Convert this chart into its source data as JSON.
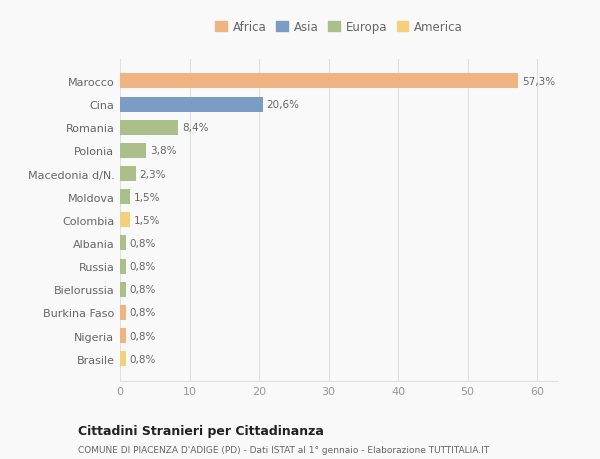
{
  "categories": [
    "Marocco",
    "Cina",
    "Romania",
    "Polonia",
    "Macedonia d/N.",
    "Moldova",
    "Colombia",
    "Albania",
    "Russia",
    "Bielorussia",
    "Burkina Faso",
    "Nigeria",
    "Brasile"
  ],
  "values": [
    57.3,
    20.6,
    8.4,
    3.8,
    2.3,
    1.5,
    1.5,
    0.8,
    0.8,
    0.8,
    0.8,
    0.8,
    0.8
  ],
  "labels": [
    "57,3%",
    "20,6%",
    "8,4%",
    "3,8%",
    "2,3%",
    "1,5%",
    "1,5%",
    "0,8%",
    "0,8%",
    "0,8%",
    "0,8%",
    "0,8%",
    "0,8%"
  ],
  "colors": [
    "#F0B482",
    "#7A9CC5",
    "#ABBF8A",
    "#ABBF8A",
    "#ABBF8A",
    "#ABBF8A",
    "#F5D07A",
    "#ABBF8A",
    "#ABBF8A",
    "#ABBF8A",
    "#F0B482",
    "#F0B482",
    "#F5D07A"
  ],
  "legend_labels": [
    "Africa",
    "Asia",
    "Europa",
    "America"
  ],
  "legend_colors": [
    "#F0B482",
    "#7A9CC5",
    "#ABBF8A",
    "#F5D07A"
  ],
  "title": "Cittadini Stranieri per Cittadinanza",
  "subtitle": "COMUNE DI PIACENZA D'ADIGE (PD) - Dati ISTAT al 1° gennaio - Elaborazione TUTTITALIA.IT",
  "xlim": [
    0,
    63
  ],
  "xticks": [
    0,
    10,
    20,
    30,
    40,
    50,
    60
  ],
  "background_color": "#f9f9f9",
  "grid_color": "#e0e0e0",
  "bar_height": 0.65
}
